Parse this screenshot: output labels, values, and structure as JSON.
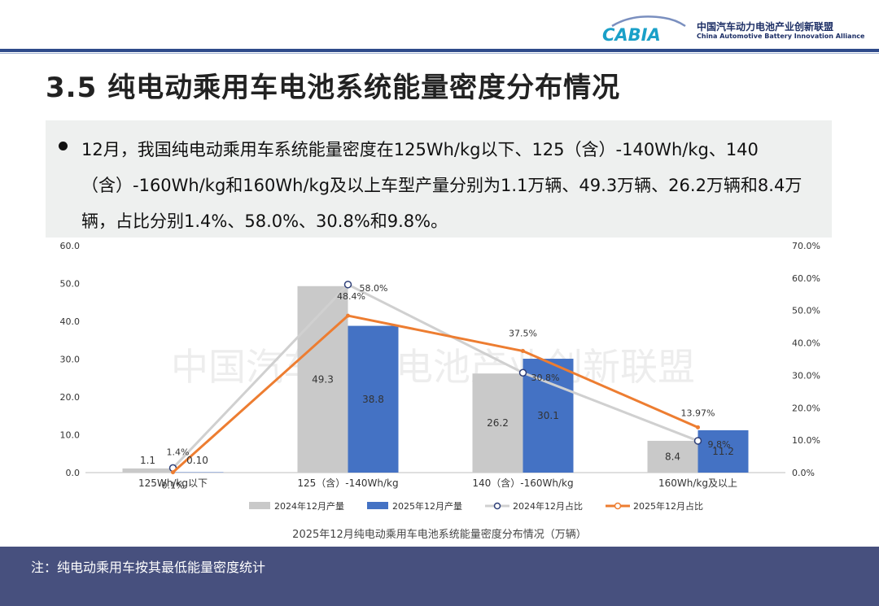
{
  "header": {
    "logo_text": "CABIA",
    "org_cn": "中国汽车动力电池产业创新联盟",
    "org_en": "China Automotive Battery Innovation Alliance"
  },
  "page_title": "3.5 纯电动乘用车电池系统能量密度分布情况",
  "bullet": "12月，我国纯电动乘用车系统能量密度在125Wh/kg以下、125（含）-140Wh/kg、140（含）-160Wh/kg和160Wh/kg及以上车型产量分别为1.1万辆、49.3万辆、26.2万辆和8.4万辆，占比分别1.4%、58.0%、30.8%和9.8%。",
  "watermark": "中国汽车动力电池产业创新联盟",
  "chart_data": {
    "type": "bar",
    "title": "2025年12月纯电动乘用车电池系统能量密度分布情况（万辆）",
    "categories": [
      "125Wh/kg以下",
      "125（含）-140Wh/kg",
      "140（含）-160Wh/kg",
      "160Wh/kg及以上"
    ],
    "y_left": {
      "min": 0,
      "max": 60,
      "step": 10,
      "ticks": [
        "0.0",
        "10.0",
        "20.0",
        "30.0",
        "40.0",
        "50.0",
        "60.0"
      ]
    },
    "y_right": {
      "min": 0,
      "max": 70,
      "step": 10,
      "ticks": [
        "0.0%",
        "10.0%",
        "20.0%",
        "30.0%",
        "40.0%",
        "50.0%",
        "60.0%",
        "70.0%"
      ]
    },
    "bars": [
      {
        "name": "2024年12月产量",
        "color": "#c9c9c9",
        "values": [
          1.1,
          49.3,
          26.2,
          8.4
        ],
        "labels": [
          "1.1",
          "49.3",
          "26.2",
          "8.4"
        ]
      },
      {
        "name": "2025年12月产量",
        "color": "#4472c4",
        "values": [
          0.1,
          38.8,
          30.1,
          11.2
        ],
        "labels": [
          "0.10",
          "38.8",
          "30.1",
          "11.2"
        ]
      }
    ],
    "lines": [
      {
        "name": "2024年12月占比",
        "color": "#d0d0d0",
        "marker": "circle",
        "values": [
          1.4,
          58.0,
          30.8,
          9.8
        ],
        "labels": [
          "1.4%",
          "58.0%",
          "30.8%",
          "9.8%"
        ]
      },
      {
        "name": "2025年12月占比",
        "color": "#ed7d31",
        "values": [
          0.1,
          48.4,
          37.5,
          13.97
        ],
        "labels": [
          "0.1%",
          "48.4%",
          "37.5%",
          "13.97%"
        ]
      }
    ],
    "legend_position": "bottom"
  },
  "footer": {
    "note": "注：纯电动乘用车按其最低能量密度统计"
  }
}
